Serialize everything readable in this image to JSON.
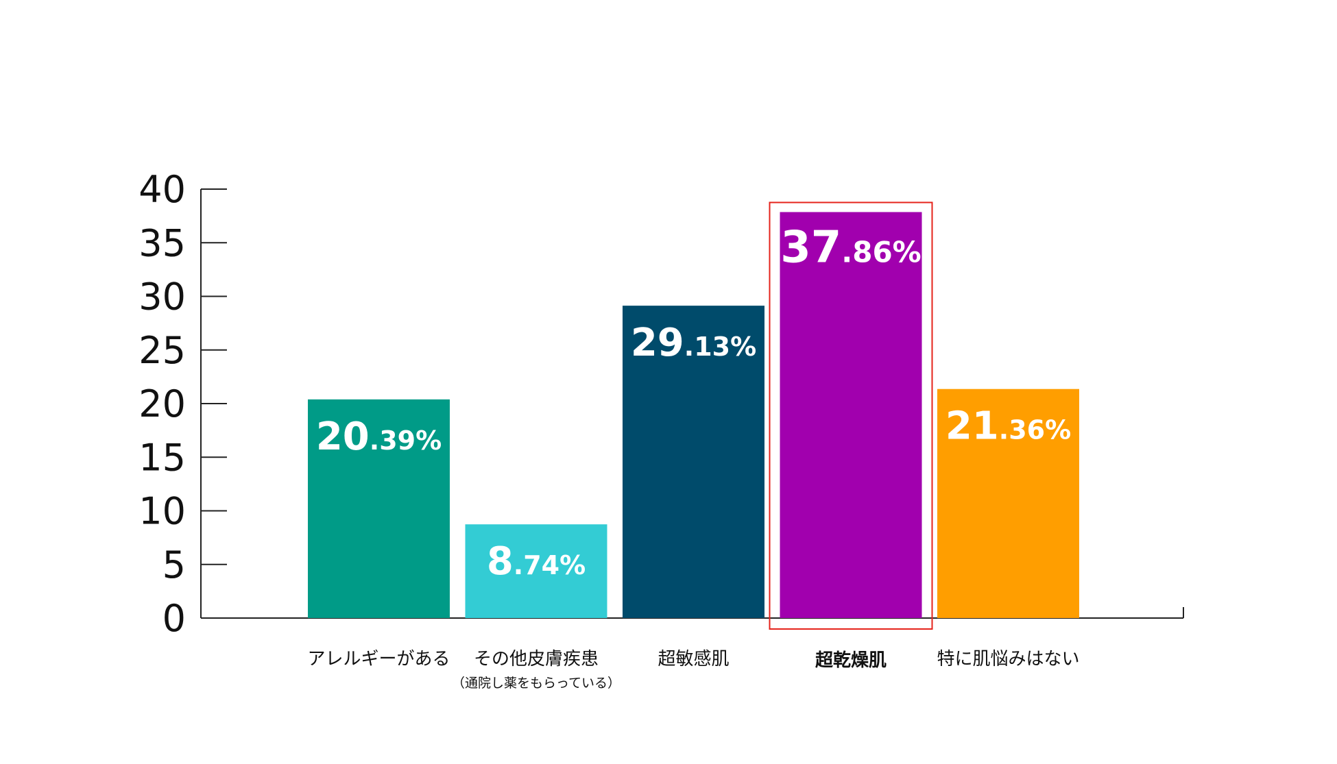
{
  "chart_data": {
    "type": "bar",
    "title": "",
    "xlabel": "",
    "ylabel": "",
    "ylim": [
      0,
      40
    ],
    "yticks": [
      0,
      5,
      10,
      15,
      20,
      25,
      30,
      35,
      40
    ],
    "grid": false,
    "legend": "none",
    "categories": [
      {
        "label": "アレルギーがある",
        "sublabel": ""
      },
      {
        "label": "その他皮膚疾患",
        "sublabel": "（通院し薬をもらっている）"
      },
      {
        "label": "超敏感肌",
        "sublabel": ""
      },
      {
        "label": "超乾燥肌",
        "sublabel": ""
      },
      {
        "label": "特に肌悩みはない",
        "sublabel": ""
      }
    ],
    "values": [
      20.39,
      8.74,
      29.13,
      37.86,
      21.36
    ],
    "value_labels": [
      {
        "int": "20",
        "dec": ".39%"
      },
      {
        "int": "8",
        "dec": ".74%"
      },
      {
        "int": "29",
        "dec": ".13%"
      },
      {
        "int": "37",
        "dec": ".86%"
      },
      {
        "int": "21",
        "dec": ".36%"
      }
    ],
    "colors": [
      "#009B87",
      "#33CCD4",
      "#004B6B",
      "#A100AE",
      "#FF9E00"
    ],
    "highlight": {
      "index": 3,
      "color": "#E5231B"
    }
  }
}
